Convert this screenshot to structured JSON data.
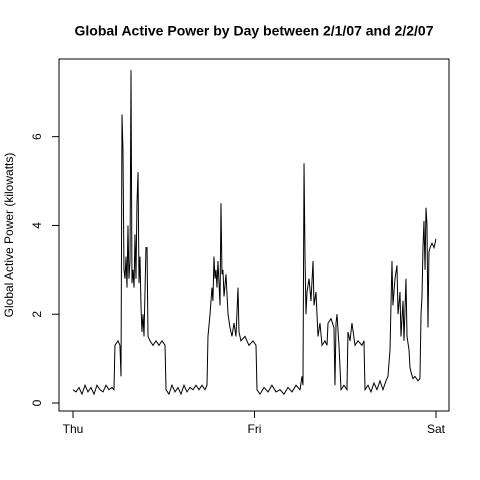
{
  "chart_data": {
    "type": "line",
    "title": "Global Active Power by Day between 2/1/07 and 2/2/07",
    "y_label": "Global Active Power (kilowatts)",
    "color": "#000000",
    "x": [
      0,
      0.4,
      0.79,
      1.19,
      1.59,
      1.98,
      2.38,
      2.78,
      3.17,
      3.57,
      3.97,
      4.36,
      4.76,
      5.16,
      5.42,
      5.55,
      5.95,
      6.21,
      6.35,
      6.48,
      6.61,
      6.74,
      6.88,
      7.01,
      7.14,
      7.27,
      7.4,
      7.54,
      7.67,
      7.8,
      7.93,
      8.07,
      8.2,
      8.33,
      8.46,
      8.6,
      8.73,
      8.86,
      8.99,
      9.12,
      9.26,
      9.39,
      9.65,
      9.79,
      9.92,
      10.18,
      10.58,
      10.98,
      11.37,
      11.77,
      12.17,
      12.3,
      12.69,
      13.09,
      13.49,
      13.88,
      14.28,
      14.68,
      15.07,
      15.47,
      15.87,
      16.26,
      16.66,
      17.06,
      17.45,
      17.72,
      17.85,
      18.12,
      18.38,
      18.51,
      18.64,
      18.78,
      18.91,
      19.04,
      19.17,
      19.31,
      19.44,
      19.57,
      19.7,
      19.83,
      19.97,
      20.23,
      20.5,
      20.76,
      21.02,
      21.29,
      21.55,
      21.82,
      21.95,
      22.21,
      22.74,
      23.27,
      23.8,
      24.2,
      24.33,
      24.73,
      25.26,
      25.79,
      26.31,
      26.84,
      27.37,
      27.9,
      28.43,
      28.96,
      29.49,
      30.02,
      30.28,
      30.41,
      30.55,
      30.68,
      30.81,
      30.94,
      31.21,
      31.47,
      31.74,
      31.87,
      32.13,
      32.4,
      32.66,
      32.93,
      33.32,
      33.59,
      33.72,
      34.12,
      34.51,
      34.64,
      34.78,
      34.91,
      35.17,
      35.44,
      35.83,
      36.23,
      36.36,
      36.63,
      36.89,
      37.29,
      37.69,
      38.21,
      38.48,
      38.61,
      39.01,
      39.4,
      39.8,
      40.2,
      40.6,
      40.99,
      41.39,
      41.65,
      41.92,
      42.18,
      42.31,
      42.58,
      42.84,
      42.98,
      43.24,
      43.37,
      43.64,
      43.77,
      44.03,
      44.17,
      44.43,
      44.56,
      44.69,
      44.96,
      45.22,
      45.62,
      45.88,
      46.02,
      46.15,
      46.28,
      46.41,
      46.55,
      46.68,
      46.81,
      46.94,
      47.07,
      47.21,
      47.47,
      47.74,
      48.0
    ],
    "values": [
      0.3,
      0.25,
      0.35,
      0.2,
      0.4,
      0.25,
      0.35,
      0.2,
      0.4,
      0.3,
      0.25,
      0.4,
      0.3,
      0.35,
      0.3,
      1.3,
      1.4,
      1.3,
      0.6,
      6.5,
      5.7,
      3.0,
      2.8,
      3.3,
      2.6,
      4.0,
      2.8,
      3.2,
      7.5,
      2.7,
      3.0,
      2.6,
      3.8,
      2.8,
      4.5,
      5.2,
      2.7,
      3.3,
      2.2,
      1.6,
      2.0,
      1.5,
      3.5,
      3.5,
      1.5,
      1.4,
      1.3,
      1.4,
      1.3,
      1.4,
      1.3,
      0.3,
      0.2,
      0.4,
      0.25,
      0.35,
      0.2,
      0.4,
      0.25,
      0.35,
      0.3,
      0.4,
      0.3,
      0.4,
      0.3,
      0.4,
      1.5,
      2.0,
      2.6,
      2.3,
      3.3,
      2.8,
      3.0,
      2.6,
      3.2,
      2.7,
      2.2,
      4.5,
      2.9,
      3.0,
      2.4,
      2.9,
      2.0,
      1.7,
      1.5,
      1.8,
      1.5,
      2.6,
      1.6,
      1.4,
      1.5,
      1.3,
      1.4,
      1.3,
      0.3,
      0.2,
      0.35,
      0.25,
      0.4,
      0.25,
      0.3,
      0.2,
      0.35,
      0.25,
      0.4,
      0.3,
      0.6,
      0.4,
      5.4,
      3.3,
      2.0,
      2.5,
      2.8,
      2.3,
      3.2,
      2.2,
      2.5,
      1.5,
      1.8,
      1.3,
      1.4,
      1.3,
      1.8,
      1.9,
      1.7,
      0.4,
      1.8,
      2.0,
      1.3,
      0.3,
      0.4,
      0.3,
      1.6,
      1.4,
      1.8,
      1.3,
      1.4,
      1.3,
      1.4,
      0.3,
      0.4,
      0.25,
      0.45,
      0.3,
      0.5,
      0.3,
      0.5,
      0.6,
      1.2,
      3.2,
      2.2,
      2.8,
      3.1,
      2.0,
      2.5,
      1.5,
      2.3,
      1.4,
      2.8,
      1.5,
      1.2,
      0.8,
      0.7,
      0.55,
      0.6,
      0.5,
      0.55,
      2.0,
      2.4,
      3.5,
      4.1,
      3.0,
      4.4,
      4.0,
      1.7,
      3.4,
      3.5,
      3.6,
      3.5,
      3.7
    ],
    "xlim": [
      -1.85,
      49.72
    ],
    "xticks": [
      {
        "value": 0,
        "label": "Thu"
      },
      {
        "value": 24,
        "label": "Fri"
      },
      {
        "value": 48,
        "label": "Sat"
      }
    ],
    "ylim": [
      -0.18,
      7.75
    ],
    "yticks": [
      0,
      2,
      4,
      6
    ],
    "grid": false
  }
}
